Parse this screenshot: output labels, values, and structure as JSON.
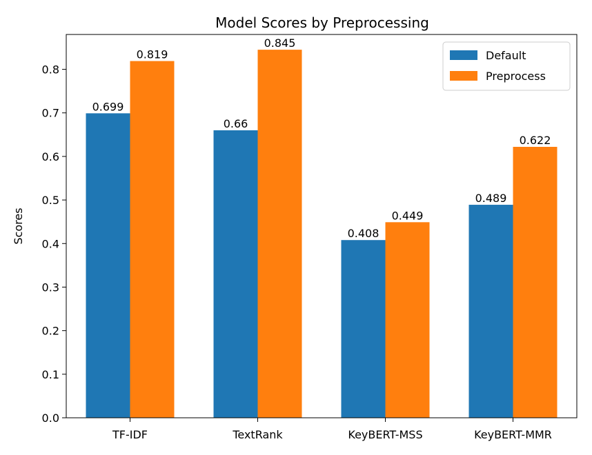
{
  "chart_data": {
    "type": "bar",
    "title": "Model Scores by Preprocessing",
    "xlabel": "",
    "ylabel": "Scores",
    "categories": [
      "TF-IDF",
      "TextRank",
      "KeyBERT-MSS",
      "KeyBERT-MMR"
    ],
    "series": [
      {
        "name": "Default",
        "values": [
          0.699,
          0.66,
          0.408,
          0.489
        ],
        "color": "#1f77b4"
      },
      {
        "name": "Preprocess",
        "values": [
          0.819,
          0.845,
          0.449,
          0.622
        ],
        "color": "#ff7f0e"
      }
    ],
    "ylim": [
      0,
      0.88
    ],
    "yticks": [
      "0.0",
      "0.1",
      "0.2",
      "0.3",
      "0.4",
      "0.5",
      "0.6",
      "0.7",
      "0.8"
    ],
    "data_labels": [
      [
        "0.699",
        "0.66",
        "0.408",
        "0.489"
      ],
      [
        "0.819",
        "0.845",
        "0.449",
        "0.622"
      ]
    ],
    "grid": false,
    "legend_position": "top-right"
  }
}
